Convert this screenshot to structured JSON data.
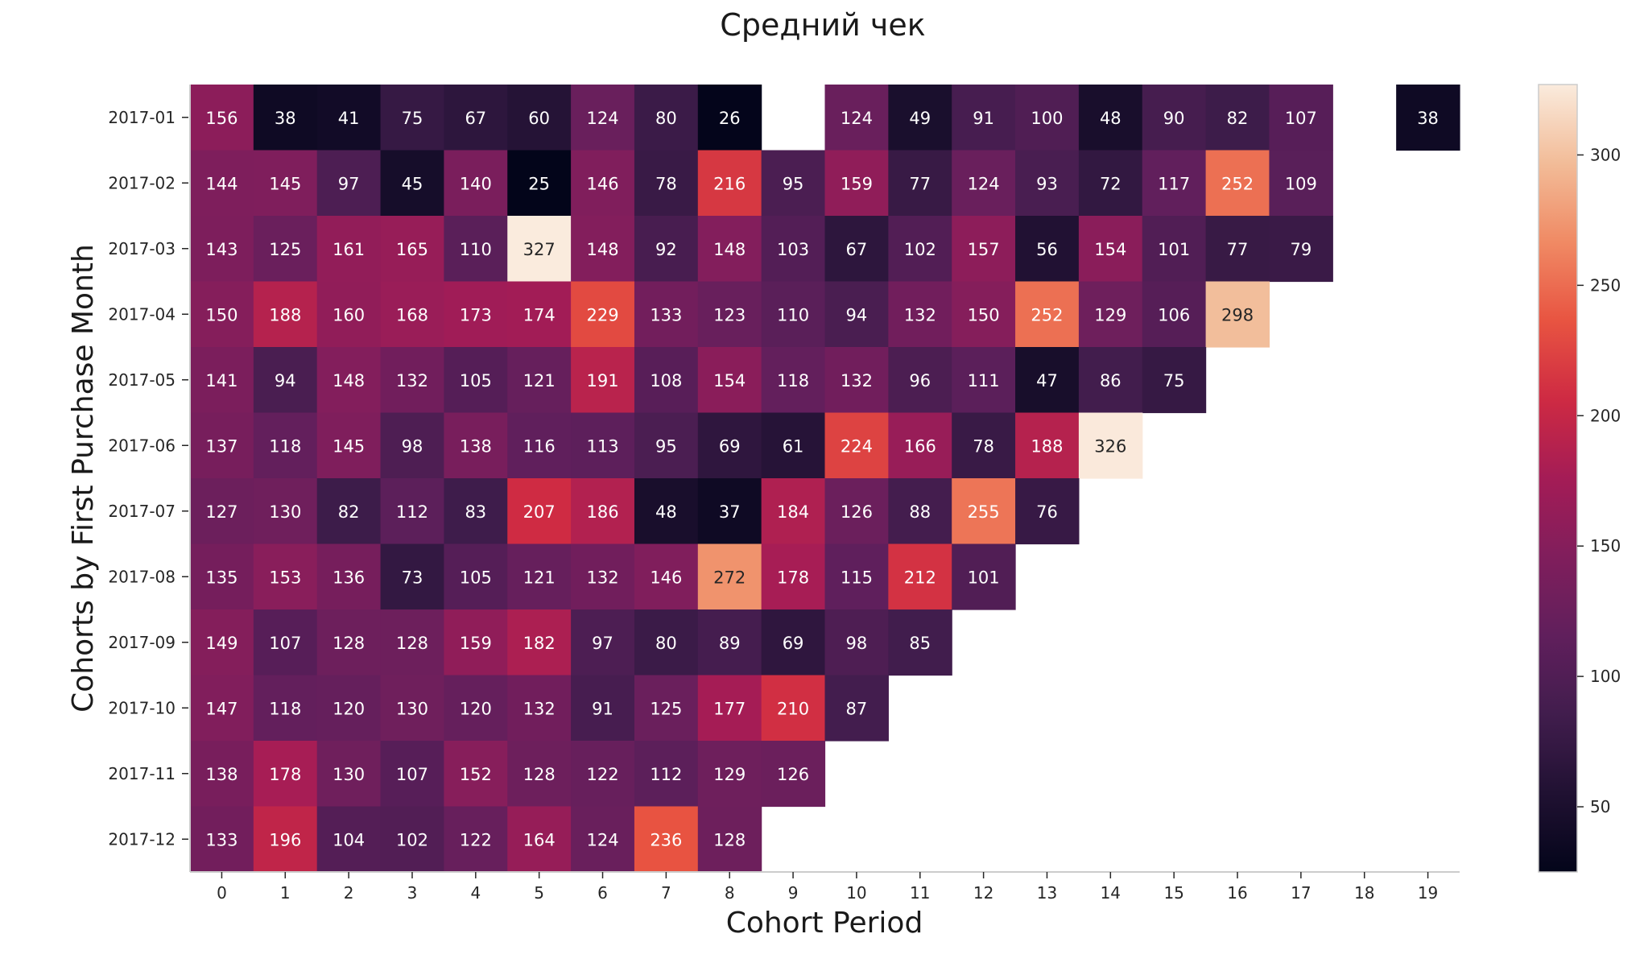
{
  "chart_data": {
    "type": "heatmap",
    "title": "Средний чек",
    "xlabel": "Cohort Period",
    "ylabel": "Cohorts by First Purchase Month",
    "x": [
      "0",
      "1",
      "2",
      "3",
      "4",
      "5",
      "6",
      "7",
      "8",
      "9",
      "10",
      "11",
      "12",
      "13",
      "14",
      "15",
      "16",
      "17",
      "18",
      "19"
    ],
    "y": [
      "2017-01",
      "2017-02",
      "2017-03",
      "2017-04",
      "2017-05",
      "2017-06",
      "2017-07",
      "2017-08",
      "2017-09",
      "2017-10",
      "2017-11",
      "2017-12"
    ],
    "values": [
      [
        156,
        38,
        41,
        75,
        67,
        60,
        124,
        80,
        26,
        null,
        124,
        49,
        91,
        100,
        48,
        90,
        82,
        107,
        null,
        38
      ],
      [
        144,
        145,
        97,
        45,
        140,
        25,
        146,
        78,
        216,
        95,
        159,
        77,
        124,
        93,
        72,
        117,
        252,
        109,
        null,
        null
      ],
      [
        143,
        125,
        161,
        165,
        110,
        327,
        148,
        92,
        148,
        103,
        67,
        102,
        157,
        56,
        154,
        101,
        77,
        79,
        null,
        null
      ],
      [
        150,
        188,
        160,
        168,
        173,
        174,
        229,
        133,
        123,
        110,
        94,
        132,
        150,
        252,
        129,
        106,
        298,
        null,
        null,
        null
      ],
      [
        141,
        94,
        148,
        132,
        105,
        121,
        191,
        108,
        154,
        118,
        132,
        96,
        111,
        47,
        86,
        75,
        null,
        null,
        null,
        null
      ],
      [
        137,
        118,
        145,
        98,
        138,
        116,
        113,
        95,
        69,
        61,
        224,
        166,
        78,
        188,
        326,
        null,
        null,
        null,
        null,
        null
      ],
      [
        127,
        130,
        82,
        112,
        83,
        207,
        186,
        48,
        37,
        184,
        126,
        88,
        255,
        76,
        null,
        null,
        null,
        null,
        null,
        null
      ],
      [
        135,
        153,
        136,
        73,
        105,
        121,
        132,
        146,
        272,
        178,
        115,
        212,
        101,
        null,
        null,
        null,
        null,
        null,
        null,
        null
      ],
      [
        149,
        107,
        128,
        128,
        159,
        182,
        97,
        80,
        89,
        69,
        98,
        85,
        null,
        null,
        null,
        null,
        null,
        null,
        null,
        null
      ],
      [
        147,
        118,
        120,
        130,
        120,
        132,
        91,
        125,
        177,
        210,
        87,
        null,
        null,
        null,
        null,
        null,
        null,
        null,
        null,
        null
      ],
      [
        138,
        178,
        130,
        107,
        152,
        128,
        122,
        112,
        129,
        126,
        null,
        null,
        null,
        null,
        null,
        null,
        null,
        null,
        null,
        null
      ],
      [
        133,
        196,
        104,
        102,
        122,
        164,
        124,
        236,
        128,
        null,
        null,
        null,
        null,
        null,
        null,
        null,
        null,
        null,
        null,
        null
      ]
    ],
    "colorbar": {
      "min": 25,
      "max": 327,
      "ticks": [
        50,
        100,
        150,
        200,
        250,
        300
      ],
      "colormap": "rocket"
    }
  }
}
